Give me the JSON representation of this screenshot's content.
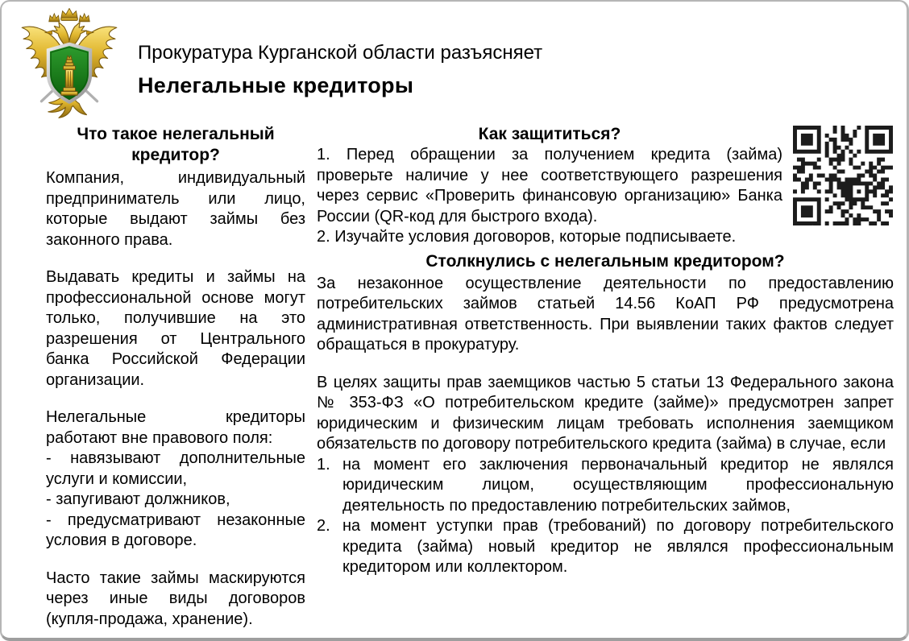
{
  "colors": {
    "border": "#b6b6b6",
    "qr_ink": "#1c1c1c",
    "emblem_gold": "#d9a520",
    "emblem_green": "#0b6b0b",
    "emblem_silver": "#c0c0c0"
  },
  "header": {
    "emblem": "prosecutor-emblem",
    "supertitle": "Прокуратура Курганской области разъясняет",
    "title": "Нелегальные кредиторы"
  },
  "left_column": {
    "heading": "Что такое нелегальный кредитор?",
    "para_1": "Компания, индивидуальный предприниматель или лицо, которые выдают займы без законного права.",
    "para_2": "Выдавать кредиты и займы на профессиональной основе могут только, получившие на это разрешения от Центрального банка Российской Федерации организации.",
    "para_3_intro": "Нелегальные кредиторы работают вне правового поля:",
    "bullets": [
      "- навязывают дополнительные услуги и комиссии,",
      "- запугивают должников,",
      "- предусматривают незаконные условия в договоре."
    ],
    "para_4": "Часто такие займы маскируются через иные виды договоров (купля-продажа, хранение)."
  },
  "protect_section": {
    "heading": "Как защититься?",
    "item_1": "1. Перед обращении за получением кредита (займа) проверьте наличие у нее соответствующего разрешения через сервис «Проверить финансовую организацию» Банка России (QR-код для быстрого входа).",
    "item_2": "2. Изучайте условия договоров, которые подписываете.",
    "qr": "qr-code"
  },
  "encounter_section": {
    "heading": "Столкнулись с нелегальным кредитором?",
    "para_1": "За незаконное осуществление деятельности по предоставлению потребительских займов статьей 14.56 КоАП РФ предусмотрена административная ответственность. При выявлении таких фактов следует обращаться в прокуратуру.",
    "para_2": "В целях защиты прав заемщиков частью 5 статьи 13 Федерального закона № 353-ФЗ «О потребительском кредите (займе)» предусмотрен запрет юридическим и физическим лицам требовать исполнения заемщиком обязательств по договору потребительского кредита (займа) в случае, если",
    "list": [
      {
        "num": "1.",
        "text": "на момент его заключения первоначальный кредитор не являлся юридическим лицом, осуществляющим профессиональную деятельность по предоставлению потребительских займов,"
      },
      {
        "num": "2.",
        "text": "на момент уступки прав (требований) по договору потребительского кредита (займа) новый кредитор не являлся профессиональным кредитором или коллектором."
      }
    ]
  }
}
